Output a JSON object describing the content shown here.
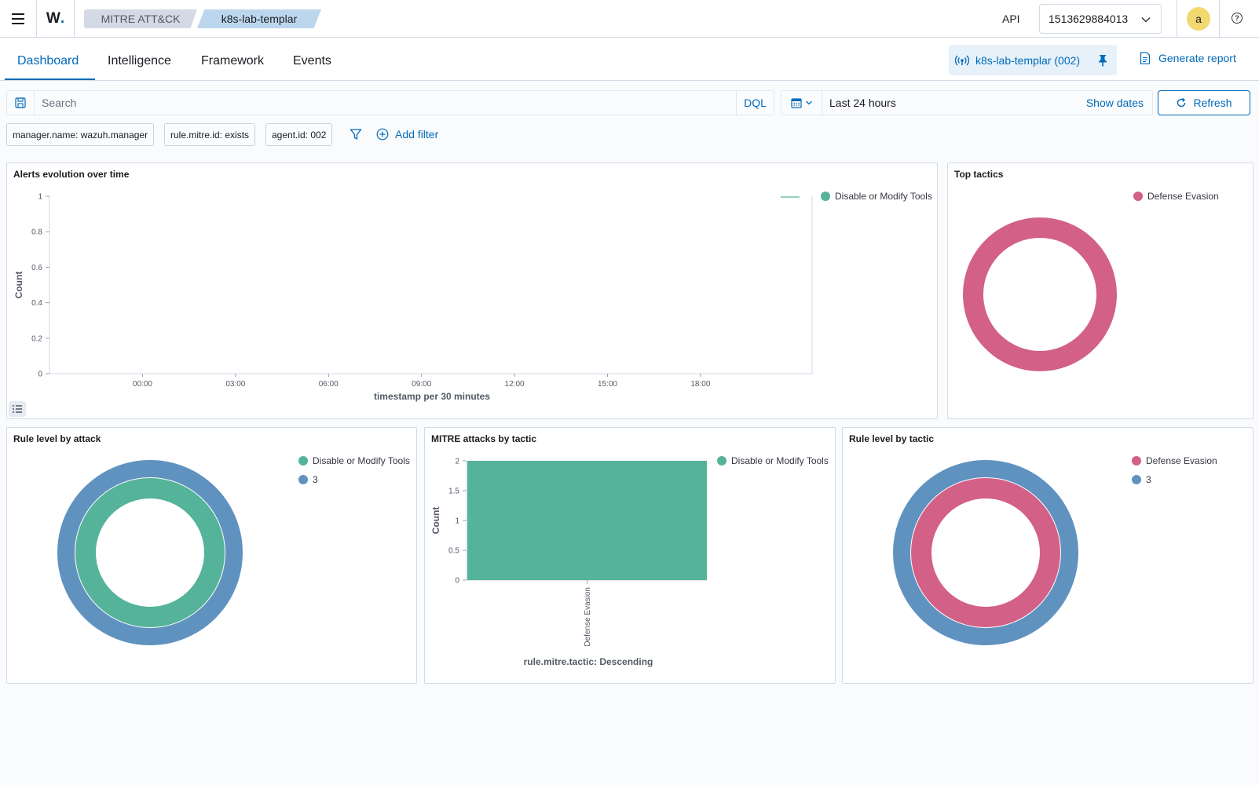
{
  "header": {
    "logo": "W",
    "breadcrumbs": [
      "MITRE ATT&CK",
      "k8s-lab-templar"
    ],
    "api_label": "API",
    "api_value": "1513629884013",
    "avatar_initial": "a",
    "help": "?"
  },
  "tabs": [
    "Dashboard",
    "Intelligence",
    "Framework",
    "Events"
  ],
  "agent_pill": "k8s-lab-templar (002)",
  "generate_report": "Generate report",
  "search": {
    "placeholder": "Search",
    "language": "DQL",
    "date_range": "Last 24 hours",
    "show_dates": "Show dates",
    "refresh": "Refresh"
  },
  "filters": [
    "manager.name: wazuh.manager",
    "rule.mitre.id: exists",
    "agent.id: 002"
  ],
  "add_filter": "Add filter",
  "colors": {
    "green": "#54b399",
    "blue": "#6092c0",
    "pink": "#d36086",
    "accent": "#006bb8"
  },
  "panels": {
    "alerts_evolution": {
      "title": "Alerts evolution over time",
      "legend": [
        "Disable or Modify Tools"
      ]
    },
    "top_tactics": {
      "title": "Top tactics",
      "legend": [
        "Defense Evasion"
      ]
    },
    "rule_level_by_attack": {
      "title": "Rule level by attack",
      "legend": [
        "Disable or Modify Tools",
        "3"
      ]
    },
    "mitre_attacks_by_tactic": {
      "title": "MITRE attacks by tactic",
      "legend": [
        "Disable or Modify Tools"
      ]
    },
    "rule_level_by_tactic": {
      "title": "Rule level by tactic",
      "legend": [
        "Defense Evasion",
        "3"
      ]
    }
  },
  "chart_data": [
    {
      "type": "line",
      "title": "Alerts evolution over time",
      "xlabel": "timestamp per 30 minutes",
      "ylabel": "Count",
      "x_ticks": [
        "00:00",
        "03:00",
        "06:00",
        "09:00",
        "12:00",
        "15:00",
        "18:00"
      ],
      "y_ticks": [
        0,
        0.2,
        0.4,
        0.6,
        0.8,
        1
      ],
      "ylim": [
        0,
        1
      ],
      "series": [
        {
          "name": "Disable or Modify Tools",
          "color": "#54b399",
          "values": []
        }
      ],
      "legend": "top-right"
    },
    {
      "type": "pie",
      "title": "Top tactics",
      "donut": true,
      "labels": [
        "Defense Evasion"
      ],
      "values": [
        1
      ],
      "colors": [
        "#d36086"
      ],
      "legend": "top-right"
    },
    {
      "type": "pie",
      "title": "Rule level by attack",
      "donut": true,
      "rings": [
        {
          "labels": [
            "Disable or Modify Tools"
          ],
          "values": [
            1
          ],
          "colors": [
            "#54b399"
          ]
        },
        {
          "labels": [
            "3"
          ],
          "values": [
            1
          ],
          "colors": [
            "#6092c0"
          ]
        }
      ],
      "legend": "top-right"
    },
    {
      "type": "bar",
      "title": "MITRE attacks by tactic",
      "categories": [
        "Defense Evasion"
      ],
      "series": [
        {
          "name": "Disable or Modify Tools",
          "color": "#54b399",
          "values": [
            2
          ]
        }
      ],
      "xlabel": "rule.mitre.tactic: Descending",
      "ylabel": "Count",
      "y_ticks": [
        0,
        0.5,
        1,
        1.5,
        2
      ],
      "ylim": [
        0,
        2
      ],
      "legend": "top-right"
    },
    {
      "type": "pie",
      "title": "Rule level by tactic",
      "donut": true,
      "rings": [
        {
          "labels": [
            "Defense Evasion"
          ],
          "values": [
            1
          ],
          "colors": [
            "#d36086"
          ]
        },
        {
          "labels": [
            "3"
          ],
          "values": [
            1
          ],
          "colors": [
            "#6092c0"
          ]
        }
      ],
      "legend": "top-right"
    }
  ]
}
